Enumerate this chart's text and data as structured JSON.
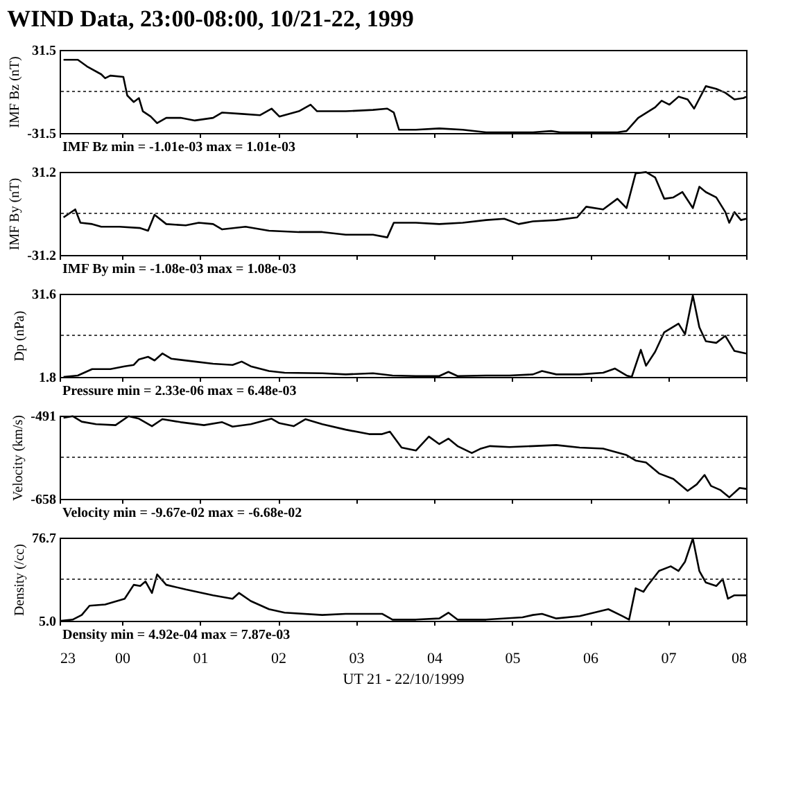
{
  "chart_data": [
    {
      "type": "line",
      "title": "WIND Data, 23:00-08:00, 10/21-22, 1999",
      "ylabel": "IMF Bz (nT)",
      "color": "#000000",
      "line_style": "solid",
      "grid": false,
      "tick_labels": "y",
      "xlim": [
        "1999-10-21T23:12",
        "1999-10-22T08:00"
      ],
      "xticks": [
        {
          "value": "1999-10-21T23:12",
          "label": null
        },
        {
          "value": "1999-10-22T00:00",
          "label": null
        },
        {
          "value": "1999-10-22T01:00",
          "label": null
        },
        {
          "value": "1999-10-22T02:00",
          "label": null
        },
        {
          "value": "1999-10-22T03:00",
          "label": null
        },
        {
          "value": "1999-10-22T04:00",
          "label": null
        },
        {
          "value": "1999-10-22T05:00",
          "label": null
        },
        {
          "value": "1999-10-22T06:00",
          "label": null
        },
        {
          "value": "1999-10-22T07:00",
          "label": null
        },
        {
          "value": "1999-10-22T08:00",
          "label": null
        }
      ],
      "ylim": [
        -31.5,
        31.5
      ],
      "yticks": [
        -31.5,
        31.5
      ],
      "ref_lines": [
        {
          "axis": "y",
          "value": 0,
          "line_style": "dotted"
        }
      ],
      "annotations": [
        "IMF Bz   min = -1.01e-03  max = 1.01e-03"
      ],
      "x": [
        "1999-10-21T23:15",
        "1999-10-21T23:26",
        "1999-10-21T23:33",
        "1999-10-21T23:44",
        "1999-10-21T23:47",
        "1999-10-21T23:51",
        "1999-10-22T00:01",
        "1999-10-22T00:04",
        "1999-10-22T00:09",
        "1999-10-22T00:13",
        "1999-10-22T00:16",
        "1999-10-22T00:22",
        "1999-10-22T00:27",
        "1999-10-22T00:34",
        "1999-10-22T00:45",
        "1999-10-22T00:56",
        "1999-10-22T01:10",
        "1999-10-22T01:17",
        "1999-10-22T01:32",
        "1999-10-22T01:46",
        "1999-10-22T01:55",
        "1999-10-22T02:01",
        "1999-10-22T02:16",
        "1999-10-22T02:25",
        "1999-10-22T02:30",
        "1999-10-22T02:52",
        "1999-10-22T03:13",
        "1999-10-22T03:24",
        "1999-10-22T03:29",
        "1999-10-22T03:33",
        "1999-10-22T03:46",
        "1999-10-22T04:04",
        "1999-10-22T04:22",
        "1999-10-22T04:40",
        "1999-10-22T04:58",
        "1999-10-22T05:16",
        "1999-10-22T05:30",
        "1999-10-22T05:37",
        "1999-10-22T05:59",
        "1999-10-22T06:21",
        "1999-10-22T06:28",
        "1999-10-22T06:37",
        "1999-10-22T06:50",
        "1999-10-22T06:55",
        "1999-10-22T07:01",
        "1999-10-22T07:08",
        "1999-10-22T07:15",
        "1999-10-22T07:20",
        "1999-10-22T07:29",
        "1999-10-22T07:37",
        "1999-10-22T07:44",
        "1999-10-22T07:51",
        "1999-10-22T07:58",
        "1999-10-22T08:00"
      ],
      "values": [
        24,
        24,
        19,
        13,
        10,
        12,
        11,
        -3,
        -8,
        -5,
        -15,
        -19,
        -24,
        -20,
        -20,
        -22,
        -20,
        -16,
        -17,
        -18,
        -13,
        -19,
        -15,
        -10,
        -15,
        -15,
        -14,
        -13,
        -16,
        -29,
        -29,
        -28,
        -29,
        -31,
        -31,
        -31,
        -30,
        -31,
        -31,
        -31,
        -30,
        -20,
        -12,
        -7,
        -10,
        -4,
        -6,
        -13,
        4,
        2,
        -1,
        -6,
        -5,
        -4
      ]
    },
    {
      "type": "line",
      "ylabel": "IMF By (nT)",
      "color": "#000000",
      "line_style": "solid",
      "grid": false,
      "tick_labels": "y",
      "xlim": [
        "1999-10-21T23:12",
        "1999-10-22T08:00"
      ],
      "xticks": [
        {
          "value": "1999-10-21T23:12",
          "label": null
        },
        {
          "value": "1999-10-22T00:00",
          "label": null
        },
        {
          "value": "1999-10-22T01:00",
          "label": null
        },
        {
          "value": "1999-10-22T02:00",
          "label": null
        },
        {
          "value": "1999-10-22T03:00",
          "label": null
        },
        {
          "value": "1999-10-22T04:00",
          "label": null
        },
        {
          "value": "1999-10-22T05:00",
          "label": null
        },
        {
          "value": "1999-10-22T06:00",
          "label": null
        },
        {
          "value": "1999-10-22T07:00",
          "label": null
        },
        {
          "value": "1999-10-22T08:00",
          "label": null
        }
      ],
      "ylim": [
        -31.2,
        31.2
      ],
      "yticks": [
        -31.2,
        31.2
      ],
      "ref_lines": [
        {
          "axis": "y",
          "value": 0,
          "line_style": "dotted"
        }
      ],
      "annotations": [
        "IMF By   min = -1.08e-03  max = 1.08e-03"
      ],
      "x": [
        "1999-10-21T23:15",
        "1999-10-21T23:24",
        "1999-10-21T23:28",
        "1999-10-21T23:37",
        "1999-10-21T23:44",
        "1999-10-21T23:58",
        "1999-10-22T00:14",
        "1999-10-22T00:20",
        "1999-10-22T00:25",
        "1999-10-22T00:34",
        "1999-10-22T00:49",
        "1999-10-22T00:59",
        "1999-10-22T01:10",
        "1999-10-22T01:17",
        "1999-10-22T01:35",
        "1999-10-22T01:53",
        "1999-10-22T02:16",
        "1999-10-22T02:34",
        "1999-10-22T02:52",
        "1999-10-22T03:13",
        "1999-10-22T03:24",
        "1999-10-22T03:29",
        "1999-10-22T03:46",
        "1999-10-22T04:04",
        "1999-10-22T04:22",
        "1999-10-22T04:40",
        "1999-10-22T04:54",
        "1999-10-22T05:05",
        "1999-10-22T05:16",
        "1999-10-22T05:34",
        "1999-10-22T05:50",
        "1999-10-22T05:57",
        "1999-10-22T06:10",
        "1999-10-22T06:21",
        "1999-10-22T06:28",
        "1999-10-22T06:35",
        "1999-10-22T06:43",
        "1999-10-22T06:50",
        "1999-10-22T06:57",
        "1999-10-22T07:04",
        "1999-10-22T07:11",
        "1999-10-22T07:19",
        "1999-10-22T07:24",
        "1999-10-22T07:29",
        "1999-10-22T07:37",
        "1999-10-22T07:44",
        "1999-10-22T07:47",
        "1999-10-22T07:51",
        "1999-10-22T07:56",
        "1999-10-22T08:00"
      ],
      "values": [
        -3,
        3,
        -7,
        -8,
        -10,
        -10,
        -11,
        -13,
        -1,
        -8,
        -9,
        -7,
        -8,
        -12,
        -10,
        -13,
        -14,
        -14,
        -16,
        -16,
        -18,
        -7,
        -7,
        -8,
        -7,
        -5,
        -4,
        -8,
        -6,
        -5,
        -3,
        5,
        3,
        11,
        4,
        30,
        31,
        27,
        11,
        12,
        16,
        4,
        20,
        16,
        12,
        1,
        -7,
        1,
        -5,
        -4
      ]
    },
    {
      "type": "line",
      "ylabel": "Dp (nPa)",
      "color": "#000000",
      "line_style": "solid",
      "grid": false,
      "tick_labels": "y",
      "xlim": [
        "1999-10-21T23:12",
        "1999-10-22T08:00"
      ],
      "xticks": [
        {
          "value": "1999-10-21T23:12",
          "label": null
        },
        {
          "value": "1999-10-22T00:00",
          "label": null
        },
        {
          "value": "1999-10-22T01:00",
          "label": null
        },
        {
          "value": "1999-10-22T02:00",
          "label": null
        },
        {
          "value": "1999-10-22T03:00",
          "label": null
        },
        {
          "value": "1999-10-22T04:00",
          "label": null
        },
        {
          "value": "1999-10-22T05:00",
          "label": null
        },
        {
          "value": "1999-10-22T06:00",
          "label": null
        },
        {
          "value": "1999-10-22T07:00",
          "label": null
        },
        {
          "value": "1999-10-22T08:00",
          "label": null
        }
      ],
      "ylim": [
        1.8,
        31.6
      ],
      "yticks": [
        1.8,
        31.6
      ],
      "ref_lines": [
        {
          "axis": "y",
          "value": 16.7,
          "line_style": "dotted"
        }
      ],
      "annotations": [
        "Pressure  min = 2.33e-06  max = 6.48e-03"
      ],
      "x": [
        "1999-10-21T23:15",
        "1999-10-21T23:26",
        "1999-10-21T23:37",
        "1999-10-21T23:51",
        "1999-10-22T00:02",
        "1999-10-22T00:09",
        "1999-10-22T00:13",
        "1999-10-22T00:20",
        "1999-10-22T00:25",
        "1999-10-22T00:31",
        "1999-10-22T00:38",
        "1999-10-22T00:56",
        "1999-10-22T01:10",
        "1999-10-22T01:25",
        "1999-10-22T01:32",
        "1999-10-22T01:39",
        "1999-10-22T01:53",
        "1999-10-22T02:05",
        "1999-10-22T02:34",
        "1999-10-22T02:52",
        "1999-10-22T03:13",
        "1999-10-22T03:28",
        "1999-10-22T03:46",
        "1999-10-22T04:04",
        "1999-10-22T04:11",
        "1999-10-22T04:18",
        "1999-10-22T04:40",
        "1999-10-22T04:58",
        "1999-10-22T05:16",
        "1999-10-22T05:23",
        "1999-10-22T05:34",
        "1999-10-22T05:52",
        "1999-10-22T06:10",
        "1999-10-22T06:19",
        "1999-10-22T06:28",
        "1999-10-22T06:32",
        "1999-10-22T06:39",
        "1999-10-22T06:43",
        "1999-10-22T06:50",
        "1999-10-22T06:57",
        "1999-10-22T07:08",
        "1999-10-22T07:13",
        "1999-10-22T07:19",
        "1999-10-22T07:24",
        "1999-10-22T07:29",
        "1999-10-22T07:37",
        "1999-10-22T07:44",
        "1999-10-22T07:51",
        "1999-10-22T08:00"
      ],
      "values": [
        1.8,
        2.3,
        4.6,
        4.6,
        5.6,
        6.1,
        8.1,
        9.0,
        7.7,
        10.2,
        8.3,
        7.3,
        6.5,
        6.1,
        7.3,
        5.6,
        3.9,
        3.3,
        3.1,
        2.7,
        3.1,
        2.3,
        2.1,
        2.1,
        3.6,
        2.1,
        2.3,
        2.3,
        2.7,
        3.9,
        2.7,
        2.7,
        3.3,
        4.8,
        2.3,
        1.8,
        11.5,
        5.8,
        10.8,
        17.8,
        20.9,
        17.1,
        31.0,
        19.6,
        14.6,
        14.0,
        16.5,
        11.1,
        10.2
      ]
    },
    {
      "type": "line",
      "ylabel": "Velocity (km/s)",
      "color": "#000000",
      "line_style": "solid",
      "grid": false,
      "tick_labels": "y",
      "xlim": [
        "1999-10-21T23:12",
        "1999-10-22T08:00"
      ],
      "xticks": [
        {
          "value": "1999-10-21T23:12",
          "label": null
        },
        {
          "value": "1999-10-22T00:00",
          "label": null
        },
        {
          "value": "1999-10-22T01:00",
          "label": null
        },
        {
          "value": "1999-10-22T02:00",
          "label": null
        },
        {
          "value": "1999-10-22T03:00",
          "label": null
        },
        {
          "value": "1999-10-22T04:00",
          "label": null
        },
        {
          "value": "1999-10-22T05:00",
          "label": null
        },
        {
          "value": "1999-10-22T06:00",
          "label": null
        },
        {
          "value": "1999-10-22T07:00",
          "label": null
        },
        {
          "value": "1999-10-22T08:00",
          "label": null
        }
      ],
      "ylim": [
        -658,
        -491
      ],
      "yticks": [
        -658,
        -491
      ],
      "ref_lines": [
        {
          "axis": "y",
          "value": -574.5,
          "line_style": "dotted"
        }
      ],
      "annotations": [
        "Velocity  min = -9.67e-02  max = -6.68e-02"
      ],
      "x": [
        "1999-10-21T23:15",
        "1999-10-21T23:22",
        "1999-10-21T23:29",
        "1999-10-21T23:40",
        "1999-10-21T23:55",
        "1999-10-22T00:05",
        "1999-10-22T00:13",
        "1999-10-22T00:23",
        "1999-10-22T00:31",
        "1999-10-22T00:45",
        "1999-10-22T01:03",
        "1999-10-22T01:17",
        "1999-10-22T01:25",
        "1999-10-22T01:39",
        "1999-10-22T01:55",
        "1999-10-22T02:01",
        "1999-10-22T02:12",
        "1999-10-22T02:21",
        "1999-10-22T02:34",
        "1999-10-22T02:52",
        "1999-10-22T03:10",
        "1999-10-22T03:20",
        "1999-10-22T03:26",
        "1999-10-22T03:35",
        "1999-10-22T03:46",
        "1999-10-22T03:56",
        "1999-10-22T04:04",
        "1999-10-22T04:11",
        "1999-10-22T04:18",
        "1999-10-22T04:29",
        "1999-10-22T04:36",
        "1999-10-22T04:43",
        "1999-10-22T04:58",
        "1999-10-22T05:16",
        "1999-10-22T05:34",
        "1999-10-22T05:52",
        "1999-10-22T06:10",
        "1999-10-22T06:28",
        "1999-10-22T06:35",
        "1999-10-22T06:43",
        "1999-10-22T06:53",
        "1999-10-22T07:04",
        "1999-10-22T07:15",
        "1999-10-22T07:22",
        "1999-10-22T07:28",
        "1999-10-22T07:33",
        "1999-10-22T07:40",
        "1999-10-22T07:47",
        "1999-10-22T07:55",
        "1999-10-22T08:00"
      ],
      "values": [
        -495,
        -492,
        -503,
        -508,
        -510,
        -492,
        -497,
        -512,
        -498,
        -504,
        -510,
        -504,
        -513,
        -508,
        -497,
        -506,
        -512,
        -498,
        -508,
        -519,
        -528,
        -528,
        -523,
        -555,
        -561,
        -533,
        -548,
        -537,
        -552,
        -566,
        -557,
        -552,
        -554,
        -552,
        -550,
        -555,
        -557,
        -570,
        -581,
        -585,
        -607,
        -618,
        -642,
        -629,
        -610,
        -632,
        -640,
        -655,
        -636,
        -638
      ]
    },
    {
      "type": "line",
      "ylabel": "Density (/cc)",
      "xlabel": "UT 21 - 22/10/1999",
      "color": "#000000",
      "line_style": "solid",
      "grid": false,
      "xlim": [
        "1999-10-21T23:12",
        "1999-10-22T08:00"
      ],
      "xticks": [
        {
          "value": "1999-10-21T23:12",
          "label": "23"
        },
        {
          "value": "1999-10-22T00:00",
          "label": "00"
        },
        {
          "value": "1999-10-22T01:00",
          "label": "01"
        },
        {
          "value": "1999-10-22T02:00",
          "label": "02"
        },
        {
          "value": "1999-10-22T03:00",
          "label": "03"
        },
        {
          "value": "1999-10-22T04:00",
          "label": "04"
        },
        {
          "value": "1999-10-22T05:00",
          "label": "05"
        },
        {
          "value": "1999-10-22T06:00",
          "label": "06"
        },
        {
          "value": "1999-10-22T07:00",
          "label": "07"
        },
        {
          "value": "1999-10-22T08:00",
          "label": "08"
        }
      ],
      "ylim": [
        5.0,
        76.7
      ],
      "yticks": [
        {
          "value": 5.0,
          "label": "5.0"
        },
        76.7
      ],
      "ref_lines": [
        {
          "axis": "y",
          "value": 40.85,
          "line_style": "dotted"
        }
      ],
      "annotations": [
        "Density   min = 4.92e-04  max = 7.87e-03"
      ],
      "x": [
        "1999-10-21T23:13",
        "1999-10-21T23:22",
        "1999-10-21T23:29",
        "1999-10-21T23:35",
        "1999-10-21T23:47",
        "1999-10-22T00:02",
        "1999-10-22T00:09",
        "1999-10-22T00:14",
        "1999-10-22T00:18",
        "1999-10-22T00:23",
        "1999-10-22T00:27",
        "1999-10-22T00:34",
        "1999-10-22T00:49",
        "1999-10-22T01:10",
        "1999-10-22T01:25",
        "1999-10-22T01:30",
        "1999-10-22T01:39",
        "1999-10-22T01:53",
        "1999-10-22T02:05",
        "1999-10-22T02:34",
        "1999-10-22T02:52",
        "1999-10-22T03:20",
        "1999-10-22T03:28",
        "1999-10-22T03:46",
        "1999-10-22T04:04",
        "1999-10-22T04:11",
        "1999-10-22T04:18",
        "1999-10-22T04:40",
        "1999-10-22T05:08",
        "1999-10-22T05:16",
        "1999-10-22T05:23",
        "1999-10-22T05:34",
        "1999-10-22T05:52",
        "1999-10-22T06:14",
        "1999-10-22T06:25",
        "1999-10-22T06:30",
        "1999-10-22T06:35",
        "1999-10-22T06:41",
        "1999-10-22T06:44",
        "1999-10-22T06:53",
        "1999-10-22T07:02",
        "1999-10-22T07:08",
        "1999-10-22T07:13",
        "1999-10-22T07:19",
        "1999-10-22T07:24",
        "1999-10-22T07:29",
        "1999-10-22T07:37",
        "1999-10-22T07:42",
        "1999-10-22T07:46",
        "1999-10-22T07:51",
        "1999-10-22T08:00"
      ],
      "values": [
        5,
        6,
        10,
        18,
        19,
        24,
        36,
        35,
        39,
        29,
        45,
        36,
        32,
        27,
        24,
        29,
        22,
        15,
        12,
        10,
        11,
        11,
        6,
        6,
        7,
        12,
        6,
        6,
        8,
        10,
        11,
        7,
        9,
        15,
        9,
        6,
        33,
        30,
        35,
        48,
        52,
        48,
        56,
        76,
        48,
        38,
        35,
        41,
        24,
        27,
        27
      ]
    }
  ]
}
